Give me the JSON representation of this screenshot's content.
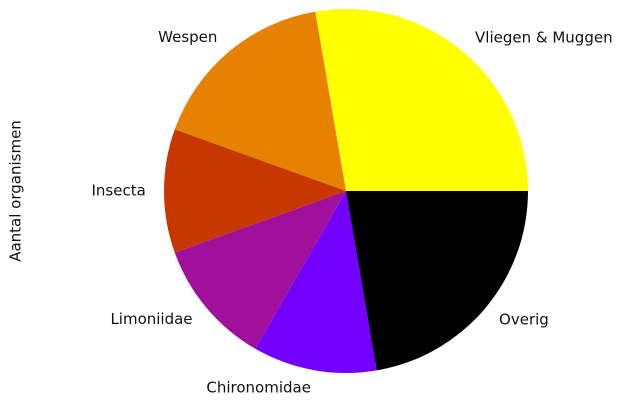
{
  "chart_data": {
    "type": "pie",
    "ylabel": "Aantal organismen",
    "categories": [
      "Vliegen & Muggen",
      "Wespen",
      "Insecta",
      "Limoniidae",
      "Chironomidae",
      "Overig"
    ],
    "values": [
      27.7,
      16.8,
      11.0,
      11.2,
      11.0,
      22.3
    ],
    "colors": [
      "#ffff00",
      "#e68200",
      "#c83700",
      "#a0109b",
      "#7300ff",
      "#000000"
    ],
    "start_angle": 0,
    "direction": "counterclockwise"
  }
}
